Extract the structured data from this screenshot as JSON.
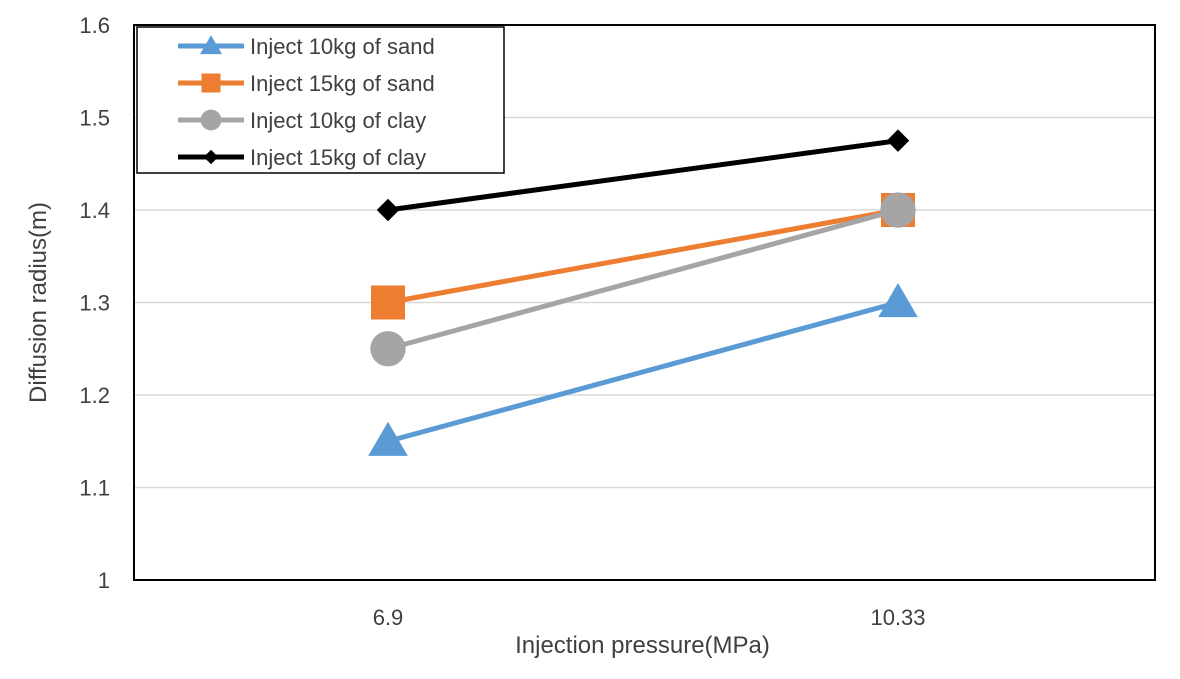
{
  "chart_data": {
    "type": "line",
    "title": "",
    "xlabel": "Injection pressure(MPa)",
    "ylabel": "Diffusion radius(m)",
    "categories": [
      "6.9",
      "10.33"
    ],
    "ylim": [
      1,
      1.6
    ],
    "yticks": [
      "1",
      "1.1",
      "1.2",
      "1.3",
      "1.4",
      "1.5",
      "1.6"
    ],
    "grid": true,
    "legend_position": "top-left",
    "series": [
      {
        "name": "Inject 10kg of sand",
        "values": [
          1.15,
          1.3
        ],
        "color": "#5B9BD5",
        "marker": "triangle"
      },
      {
        "name": "Inject 15kg of sand",
        "values": [
          1.3,
          1.4
        ],
        "color": "#ED7D31",
        "marker": "square"
      },
      {
        "name": "Inject 10kg of clay",
        "values": [
          1.25,
          1.4
        ],
        "color": "#A5A5A5",
        "marker": "circle"
      },
      {
        "name": "Inject 15kg of clay",
        "values": [
          1.4,
          1.475
        ],
        "color": "#000000",
        "marker": "diamond"
      }
    ]
  }
}
